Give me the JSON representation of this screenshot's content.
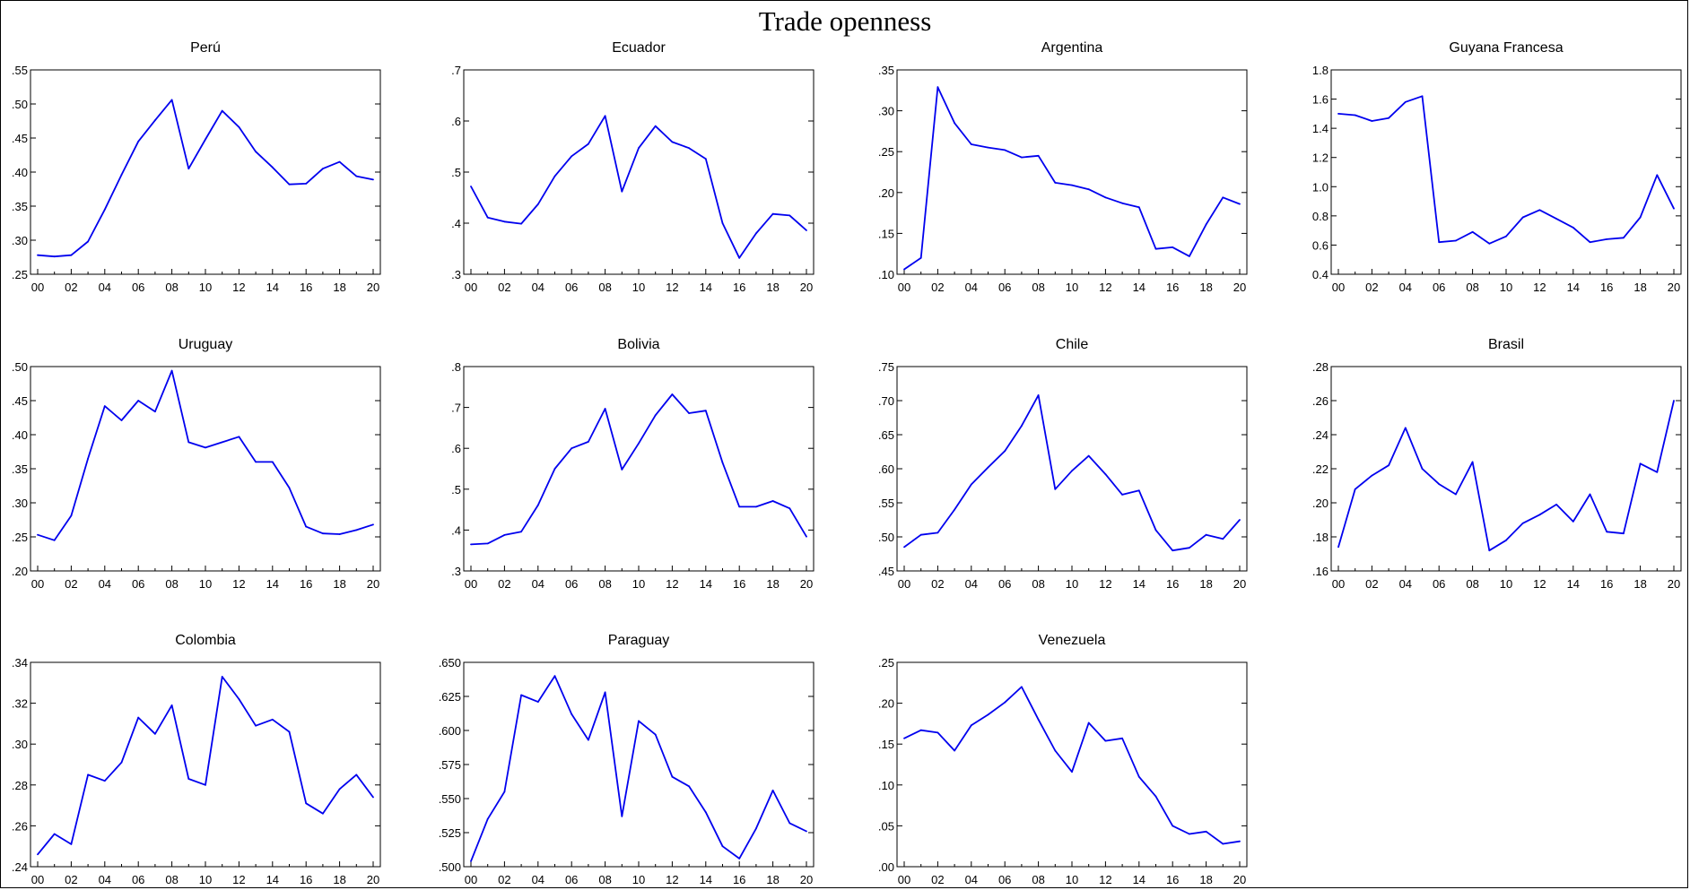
{
  "title": "Trade openness",
  "chart_data": [
    {
      "type": "line",
      "title": "Perú",
      "x": [
        "00",
        "01",
        "02",
        "03",
        "04",
        "05",
        "06",
        "07",
        "08",
        "09",
        "10",
        "11",
        "12",
        "13",
        "14",
        "15",
        "16",
        "17",
        "18",
        "19",
        "20"
      ],
      "xticks": [
        "00",
        "02",
        "04",
        "06",
        "08",
        "10",
        "12",
        "14",
        "16",
        "18",
        "20"
      ],
      "ylim": [
        0.25,
        0.55
      ],
      "yticks": [
        0.25,
        0.3,
        0.35,
        0.4,
        0.45,
        0.5,
        0.55
      ],
      "ytick_labels": [
        ".25",
        ".30",
        ".35",
        ".40",
        ".45",
        ".50",
        ".55"
      ],
      "color": "#0000ee",
      "values": [
        0.278,
        0.276,
        0.278,
        0.298,
        0.345,
        0.396,
        0.445,
        0.476,
        0.506,
        0.405,
        0.448,
        0.49,
        0.466,
        0.43,
        0.407,
        0.382,
        0.383,
        0.405,
        0.415,
        0.394,
        0.389
      ]
    },
    {
      "type": "line",
      "title": "Ecuador",
      "x": [
        "00",
        "01",
        "02",
        "03",
        "04",
        "05",
        "06",
        "07",
        "08",
        "09",
        "10",
        "11",
        "12",
        "13",
        "14",
        "15",
        "16",
        "17",
        "18",
        "19",
        "20"
      ],
      "xticks": [
        "00",
        "02",
        "04",
        "06",
        "08",
        "10",
        "12",
        "14",
        "16",
        "18",
        "20"
      ],
      "ylim": [
        0.3,
        0.7
      ],
      "yticks": [
        0.3,
        0.4,
        0.5,
        0.6,
        0.7
      ],
      "ytick_labels": [
        ".3",
        ".4",
        ".5",
        ".6",
        ".7"
      ],
      "color": "#0000ee",
      "values": [
        0.472,
        0.411,
        0.403,
        0.399,
        0.437,
        0.492,
        0.531,
        0.555,
        0.61,
        0.462,
        0.547,
        0.59,
        0.559,
        0.547,
        0.526,
        0.4,
        0.332,
        0.38,
        0.418,
        0.415,
        0.386
      ]
    },
    {
      "type": "line",
      "title": "Argentina",
      "x": [
        "00",
        "01",
        "02",
        "03",
        "04",
        "05",
        "06",
        "07",
        "08",
        "09",
        "10",
        "11",
        "12",
        "13",
        "14",
        "15",
        "16",
        "17",
        "18",
        "19",
        "20"
      ],
      "xticks": [
        "00",
        "02",
        "04",
        "06",
        "08",
        "10",
        "12",
        "14",
        "16",
        "18",
        "20"
      ],
      "ylim": [
        0.1,
        0.35
      ],
      "yticks": [
        0.1,
        0.15,
        0.2,
        0.25,
        0.3,
        0.35
      ],
      "ytick_labels": [
        ".10",
        ".15",
        ".20",
        ".25",
        ".30",
        ".35"
      ],
      "color": "#0000ee",
      "values": [
        0.106,
        0.12,
        0.329,
        0.285,
        0.259,
        0.255,
        0.252,
        0.243,
        0.245,
        0.212,
        0.209,
        0.204,
        0.194,
        0.187,
        0.182,
        0.131,
        0.133,
        0.122,
        0.161,
        0.194,
        0.186
      ]
    },
    {
      "type": "line",
      "title": "Guyana Francesa",
      "x": [
        "00",
        "01",
        "02",
        "03",
        "04",
        "05",
        "06",
        "07",
        "08",
        "09",
        "10",
        "11",
        "12",
        "13",
        "14",
        "15",
        "16",
        "17",
        "18",
        "19",
        "20"
      ],
      "xticks": [
        "00",
        "02",
        "04",
        "06",
        "08",
        "10",
        "12",
        "14",
        "16",
        "18",
        "20"
      ],
      "ylim": [
        0.4,
        1.8
      ],
      "yticks": [
        0.4,
        0.6,
        0.8,
        1.0,
        1.2,
        1.4,
        1.6,
        1.8
      ],
      "ytick_labels": [
        "0.4",
        "0.6",
        "0.8",
        "1.0",
        "1.2",
        "1.4",
        "1.6",
        "1.8"
      ],
      "color": "#0000ee",
      "values": [
        1.5,
        1.49,
        1.45,
        1.47,
        1.58,
        1.62,
        0.62,
        0.63,
        0.69,
        0.61,
        0.66,
        0.79,
        0.84,
        0.78,
        0.72,
        0.62,
        0.64,
        0.65,
        0.79,
        1.08,
        0.85
      ]
    },
    {
      "type": "line",
      "title": "Uruguay",
      "x": [
        "00",
        "01",
        "02",
        "03",
        "04",
        "05",
        "06",
        "07",
        "08",
        "09",
        "10",
        "11",
        "12",
        "13",
        "14",
        "15",
        "16",
        "17",
        "18",
        "19",
        "20"
      ],
      "xticks": [
        "00",
        "02",
        "04",
        "06",
        "08",
        "10",
        "12",
        "14",
        "16",
        "18",
        "20"
      ],
      "ylim": [
        0.2,
        0.5
      ],
      "yticks": [
        0.2,
        0.25,
        0.3,
        0.35,
        0.4,
        0.45,
        0.5
      ],
      "ytick_labels": [
        ".20",
        ".25",
        ".30",
        ".35",
        ".40",
        ".45",
        ".50"
      ],
      "color": "#0000ee",
      "values": [
        0.253,
        0.245,
        0.281,
        0.365,
        0.442,
        0.421,
        0.45,
        0.434,
        0.494,
        0.389,
        0.381,
        0.389,
        0.397,
        0.36,
        0.36,
        0.322,
        0.265,
        0.255,
        0.254,
        0.26,
        0.268
      ]
    },
    {
      "type": "line",
      "title": "Bolivia",
      "x": [
        "00",
        "01",
        "02",
        "03",
        "04",
        "05",
        "06",
        "07",
        "08",
        "09",
        "10",
        "11",
        "12",
        "13",
        "14",
        "15",
        "16",
        "17",
        "18",
        "19",
        "20"
      ],
      "xticks": [
        "00",
        "02",
        "04",
        "06",
        "08",
        "10",
        "12",
        "14",
        "16",
        "18",
        "20"
      ],
      "ylim": [
        0.3,
        0.8
      ],
      "yticks": [
        0.3,
        0.4,
        0.5,
        0.6,
        0.7,
        0.8
      ],
      "ytick_labels": [
        ".3",
        ".4",
        ".5",
        ".6",
        ".7",
        ".8"
      ],
      "color": "#0000ee",
      "values": [
        0.365,
        0.367,
        0.388,
        0.396,
        0.461,
        0.55,
        0.6,
        0.616,
        0.697,
        0.548,
        0.612,
        0.681,
        0.732,
        0.686,
        0.692,
        0.565,
        0.457,
        0.457,
        0.471,
        0.453,
        0.384
      ]
    },
    {
      "type": "line",
      "title": "Chile",
      "x": [
        "00",
        "01",
        "02",
        "03",
        "04",
        "05",
        "06",
        "07",
        "08",
        "09",
        "10",
        "11",
        "12",
        "13",
        "14",
        "15",
        "16",
        "17",
        "18",
        "19",
        "20"
      ],
      "xticks": [
        "00",
        "02",
        "04",
        "06",
        "08",
        "10",
        "12",
        "14",
        "16",
        "18",
        "20"
      ],
      "ylim": [
        0.45,
        0.75
      ],
      "yticks": [
        0.45,
        0.5,
        0.55,
        0.6,
        0.65,
        0.7,
        0.75
      ],
      "ytick_labels": [
        ".45",
        ".50",
        ".55",
        ".60",
        ".65",
        ".70",
        ".75"
      ],
      "color": "#0000ee",
      "values": [
        0.485,
        0.503,
        0.506,
        0.54,
        0.577,
        0.602,
        0.626,
        0.663,
        0.708,
        0.57,
        0.597,
        0.619,
        0.592,
        0.562,
        0.568,
        0.51,
        0.48,
        0.484,
        0.503,
        0.497,
        0.525
      ]
    },
    {
      "type": "line",
      "title": "Brasil",
      "x": [
        "00",
        "01",
        "02",
        "03",
        "04",
        "05",
        "06",
        "07",
        "08",
        "09",
        "10",
        "11",
        "12",
        "13",
        "14",
        "15",
        "16",
        "17",
        "18",
        "19",
        "20"
      ],
      "xticks": [
        "00",
        "02",
        "04",
        "06",
        "08",
        "10",
        "12",
        "14",
        "16",
        "18",
        "20"
      ],
      "ylim": [
        0.16,
        0.28
      ],
      "yticks": [
        0.16,
        0.18,
        0.2,
        0.22,
        0.24,
        0.26,
        0.28
      ],
      "ytick_labels": [
        ".16",
        ".18",
        ".20",
        ".22",
        ".24",
        ".26",
        ".28"
      ],
      "color": "#0000ee",
      "values": [
        0.174,
        0.208,
        0.216,
        0.222,
        0.244,
        0.22,
        0.211,
        0.205,
        0.224,
        0.172,
        0.178,
        0.188,
        0.193,
        0.199,
        0.189,
        0.205,
        0.183,
        0.182,
        0.223,
        0.218,
        0.26
      ]
    },
    {
      "type": "line",
      "title": "Colombia",
      "x": [
        "00",
        "01",
        "02",
        "03",
        "04",
        "05",
        "06",
        "07",
        "08",
        "09",
        "10",
        "11",
        "12",
        "13",
        "14",
        "15",
        "16",
        "17",
        "18",
        "19",
        "20"
      ],
      "xticks": [
        "00",
        "02",
        "04",
        "06",
        "08",
        "10",
        "12",
        "14",
        "16",
        "18",
        "20"
      ],
      "ylim": [
        0.24,
        0.34
      ],
      "yticks": [
        0.24,
        0.26,
        0.28,
        0.3,
        0.32,
        0.34
      ],
      "ytick_labels": [
        ".24",
        ".26",
        ".28",
        ".30",
        ".32",
        ".34"
      ],
      "color": "#0000ee",
      "values": [
        0.246,
        0.256,
        0.251,
        0.285,
        0.282,
        0.291,
        0.313,
        0.305,
        0.319,
        0.283,
        0.28,
        0.333,
        0.322,
        0.309,
        0.312,
        0.306,
        0.271,
        0.266,
        0.278,
        0.285,
        0.274
      ]
    },
    {
      "type": "line",
      "title": "Paraguay",
      "x": [
        "00",
        "01",
        "02",
        "03",
        "04",
        "05",
        "06",
        "07",
        "08",
        "09",
        "10",
        "11",
        "12",
        "13",
        "14",
        "15",
        "16",
        "17",
        "18",
        "19",
        "20"
      ],
      "xticks": [
        "00",
        "02",
        "04",
        "06",
        "08",
        "10",
        "12",
        "14",
        "16",
        "18",
        "20"
      ],
      "ylim": [
        0.5,
        0.65
      ],
      "yticks": [
        0.5,
        0.525,
        0.55,
        0.575,
        0.6,
        0.625,
        0.65
      ],
      "ytick_labels": [
        ".500",
        ".525",
        ".550",
        ".575",
        ".600",
        ".625",
        ".650"
      ],
      "color": "#0000ee",
      "values": [
        0.504,
        0.535,
        0.555,
        0.626,
        0.621,
        0.64,
        0.612,
        0.593,
        0.628,
        0.537,
        0.607,
        0.597,
        0.566,
        0.559,
        0.54,
        0.515,
        0.506,
        0.528,
        0.556,
        0.532,
        0.526
      ]
    },
    {
      "type": "line",
      "title": "Venezuela",
      "x": [
        "00",
        "01",
        "02",
        "03",
        "04",
        "05",
        "06",
        "07",
        "08",
        "09",
        "10",
        "11",
        "12",
        "13",
        "14",
        "15",
        "16",
        "17",
        "18",
        "19",
        "20"
      ],
      "xticks": [
        "00",
        "02",
        "04",
        "06",
        "08",
        "10",
        "12",
        "14",
        "16",
        "18",
        "20"
      ],
      "ylim": [
        0.0,
        0.25
      ],
      "yticks": [
        0.0,
        0.05,
        0.1,
        0.15,
        0.2,
        0.25
      ],
      "ytick_labels": [
        ".00",
        ".05",
        ".10",
        ".15",
        ".20",
        ".25"
      ],
      "color": "#0000ee",
      "values": [
        0.157,
        0.167,
        0.164,
        0.142,
        0.173,
        0.186,
        0.201,
        0.22,
        0.18,
        0.142,
        0.116,
        0.176,
        0.154,
        0.157,
        0.11,
        0.086,
        0.05,
        0.04,
        0.043,
        0.028,
        0.031
      ]
    }
  ]
}
